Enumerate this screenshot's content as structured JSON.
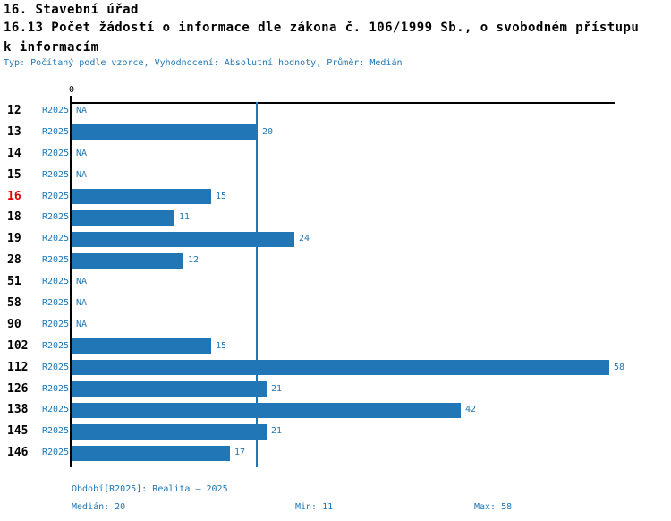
{
  "header": {
    "title_line1": "16. Stavební úřad",
    "title_line2": "16.13 Počet žádostí o informace dle zákona č. 106/1999 Sb., o svobodném přístupu k informacím",
    "meta_line": "Typ: Počítaný podle vzorce, Vyhodnocení: Absolutní hodnoty, Průměr: Medián"
  },
  "chart_data": {
    "type": "bar",
    "orientation": "horizontal",
    "title": "16.13 Počet žádostí o informace dle zákona č. 106/1999 Sb., o svobodném přístupu k informacím",
    "series_label": "R2025",
    "axis_zero_label": "0",
    "categories": [
      "12",
      "13",
      "14",
      "15",
      "16",
      "18",
      "19",
      "28",
      "51",
      "58",
      "90",
      "102",
      "112",
      "126",
      "138",
      "145",
      "146"
    ],
    "values": [
      null,
      20,
      null,
      null,
      15,
      11,
      24,
      12,
      null,
      null,
      null,
      15,
      58,
      21,
      42,
      21,
      17
    ],
    "na_text": "NA",
    "highlighted_category": "16",
    "median_line_value": 20,
    "xlim": [
      0,
      58.6
    ],
    "grid": false,
    "legend": "none",
    "colors": {
      "bar": "#2176b5",
      "median_line": "#1f77b4",
      "text_blue": "#1f77b4",
      "highlight": "#e00000",
      "axis": "#000000"
    }
  },
  "footer": {
    "period_label": "Období[R2025]: Realita – 2025",
    "median_label": "Medián: 20",
    "min_label": "Min: 11",
    "max_label": "Max: 58"
  }
}
